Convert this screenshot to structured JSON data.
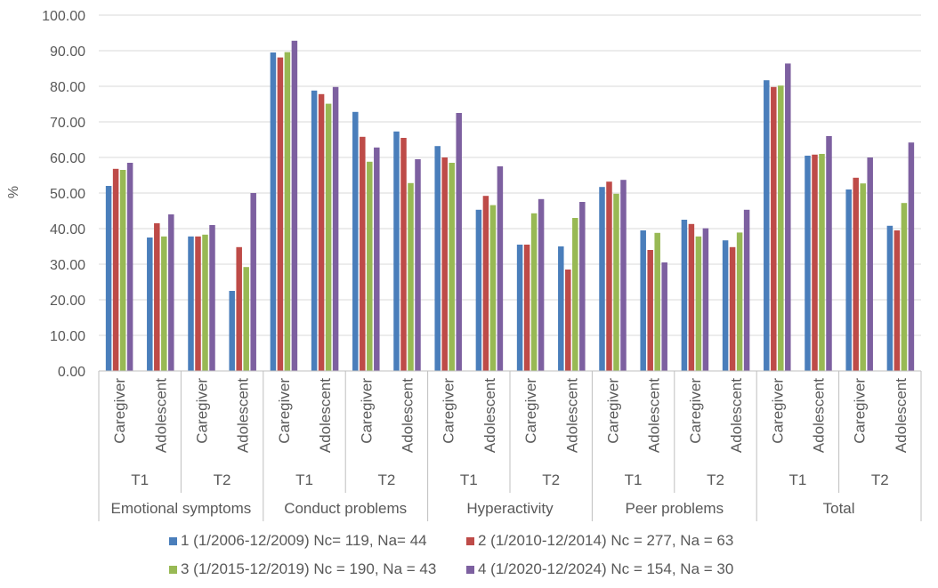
{
  "chart_data": {
    "type": "bar",
    "ylabel": "%",
    "ylim": [
      0,
      100
    ],
    "yticks": [
      "0.00",
      "10.00",
      "20.00",
      "30.00",
      "40.00",
      "50.00",
      "60.00",
      "70.00",
      "80.00",
      "90.00",
      "100.00"
    ],
    "grid": true,
    "legend_position": "bottom",
    "groups": [
      {
        "label": "Emotional symptoms",
        "times": [
          {
            "label": "T1",
            "informants": [
              "Caregiver",
              "Adolescent"
            ]
          },
          {
            "label": "T2",
            "informants": [
              "Caregiver",
              "Adolescent"
            ]
          }
        ]
      },
      {
        "label": "Conduct problems",
        "times": [
          {
            "label": "T1",
            "informants": [
              "Caregiver",
              "Adolescent"
            ]
          },
          {
            "label": "T2",
            "informants": [
              "Caregiver",
              "Adolescent"
            ]
          }
        ]
      },
      {
        "label": "Hyperactivity",
        "times": [
          {
            "label": "T1",
            "informants": [
              "Caregiver",
              "Adolescent"
            ]
          },
          {
            "label": "T2",
            "informants": [
              "Caregiver",
              "Adolescent"
            ]
          }
        ]
      },
      {
        "label": "Peer problems",
        "times": [
          {
            "label": "T1",
            "informants": [
              "Caregiver",
              "Adolescent"
            ]
          },
          {
            "label": "T2",
            "informants": [
              "Caregiver",
              "Adolescent"
            ]
          }
        ]
      },
      {
        "label": "Total",
        "times": [
          {
            "label": "T1",
            "informants": [
              "Caregiver",
              "Adolescent"
            ]
          },
          {
            "label": "T2",
            "informants": [
              "Caregiver",
              "Adolescent"
            ]
          }
        ]
      }
    ],
    "series": [
      {
        "name": "1 (1/2006-12/2009) Nc= 119, Na= 44",
        "color": "#4a7ebb",
        "values": [
          52,
          37.5,
          37.8,
          22.5,
          89.5,
          78.8,
          72.8,
          67.3,
          63.2,
          45.3,
          35.5,
          35,
          51.7,
          39.5,
          42.5,
          36.7,
          81.7,
          60.5,
          51,
          40.8
        ]
      },
      {
        "name": "2 (1/2010-12/2014) Nc = 277, Na = 63",
        "color": "#be4b48",
        "values": [
          56.8,
          41.5,
          37.8,
          34.8,
          88.1,
          77.8,
          65.8,
          65.5,
          60,
          49.2,
          35.5,
          28.5,
          53.2,
          34,
          41.3,
          34.8,
          79.8,
          60.8,
          54.3,
          39.5
        ]
      },
      {
        "name": "3 (1/2015-12/2019) Nc = 190, Na = 43",
        "color": "#98b954",
        "values": [
          56.5,
          37.8,
          38.3,
          29.2,
          89.6,
          75.1,
          58.8,
          52.8,
          58.5,
          46.6,
          44.3,
          43,
          49.8,
          38.8,
          37.8,
          38.9,
          80.2,
          61,
          52.7,
          47.2
        ]
      },
      {
        "name": "4 (1/2020-12/2024) Nc = 154, Na = 30",
        "color": "#7d60a0",
        "values": [
          58.5,
          44,
          41,
          50,
          92.8,
          79.8,
          62.8,
          59.5,
          72.5,
          57.5,
          48.3,
          47.5,
          53.7,
          30.5,
          40.1,
          45.3,
          86.4,
          66,
          60,
          64.2
        ]
      }
    ]
  }
}
